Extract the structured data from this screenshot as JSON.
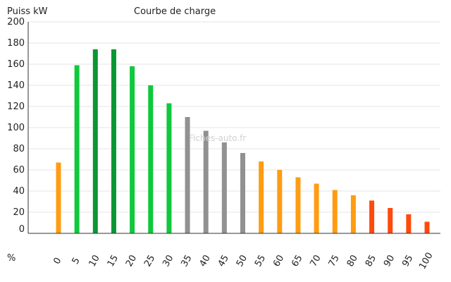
{
  "chart_data": {
    "type": "bar",
    "title": "Courbe de charge",
    "ylabel": "Puiss kW",
    "xlabel": "%",
    "ylim": [
      0,
      200
    ],
    "yticks": [
      0,
      20,
      40,
      60,
      80,
      100,
      120,
      140,
      160,
      180,
      200
    ],
    "grid": true,
    "categories": [
      "0",
      "5",
      "10",
      "15",
      "20",
      "25",
      "30",
      "35",
      "40",
      "45",
      "50",
      "55",
      "60",
      "65",
      "70",
      "75",
      "80",
      "85",
      "90",
      "95",
      "100"
    ],
    "values": [
      67,
      159,
      174,
      174,
      158,
      140,
      123,
      110,
      97,
      86,
      76,
      68,
      60,
      53,
      47,
      41,
      36,
      31,
      24,
      18,
      11
    ],
    "colors": [
      "#ff9c12",
      "#10c83c",
      "#0a9633",
      "#0a9633",
      "#10c83c",
      "#10c83c",
      "#10c83c",
      "#919191",
      "#919191",
      "#919191",
      "#919191",
      "#ff9c12",
      "#ff9c12",
      "#ff9c12",
      "#ff9c12",
      "#ff9c12",
      "#ff9c12",
      "#ff4a0d",
      "#ff4a0d",
      "#ff4a0d",
      "#ff4a0d"
    ]
  },
  "watermark": "Fiches-auto.fr"
}
